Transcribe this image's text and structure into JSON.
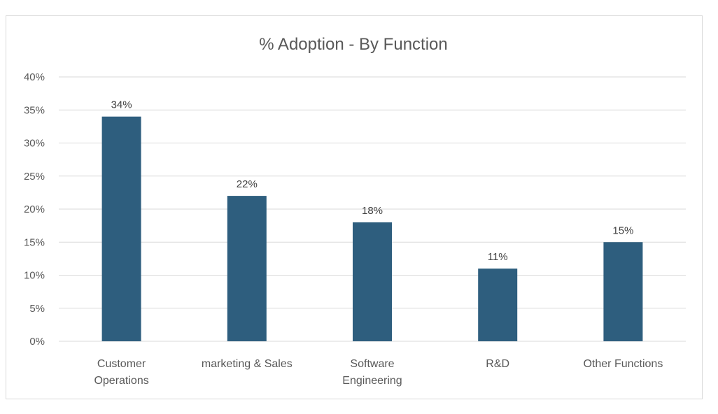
{
  "chart_data": {
    "type": "bar",
    "title": "% Adoption - By Function",
    "xlabel": "",
    "ylabel": "",
    "categories": [
      [
        "Customer",
        "Operations"
      ],
      [
        "marketing & Sales"
      ],
      [
        "Software",
        "Engineering"
      ],
      [
        "R&D"
      ],
      [
        "Other Functions"
      ]
    ],
    "category_names": [
      "Customer Operations",
      "marketing & Sales",
      "Software Engineering",
      "R&D",
      "Other Functions"
    ],
    "values": [
      34,
      22,
      18,
      11,
      15
    ],
    "data_labels": [
      "34%",
      "22%",
      "18%",
      "11%",
      "15%"
    ],
    "ylim": [
      0,
      40
    ],
    "yticks": [
      0,
      5,
      10,
      15,
      20,
      25,
      30,
      35,
      40
    ],
    "ytick_labels": [
      "0%",
      "5%",
      "10%",
      "15%",
      "20%",
      "25%",
      "30%",
      "35%",
      "40%"
    ],
    "grid": true,
    "legend": "none",
    "colors": {
      "bar": "#2E5E7E",
      "grid": "#d9d9d9",
      "text": "#595959"
    }
  }
}
